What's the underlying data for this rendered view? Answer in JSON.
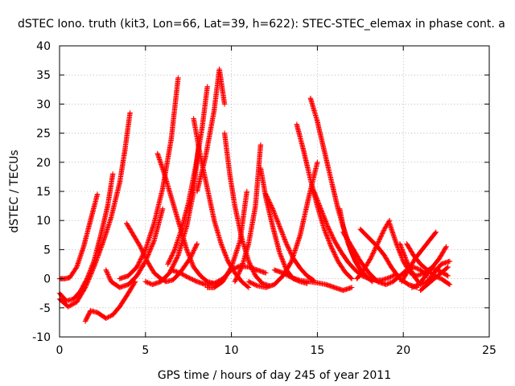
{
  "chart_data": {
    "type": "scatter",
    "title": "dSTEC Iono. truth (kit3, Lon=66, Lat=39, h=622): STEC-STEC_elemax in phase cont. a",
    "xlabel": "GPS time / hours of day 245 of year 2011",
    "ylabel": "dSTEC  / TECUs",
    "xlim": [
      0,
      25
    ],
    "ylim": [
      -10,
      40
    ],
    "xticks": [
      0,
      5,
      10,
      15,
      20,
      25
    ],
    "yticks": [
      -10,
      -5,
      0,
      5,
      10,
      15,
      20,
      25,
      30,
      35,
      40
    ],
    "grid": true,
    "marker": "+",
    "color": "#ff0000",
    "series": [
      {
        "x": [
          0,
          0.3,
          0.6,
          1.0,
          1.4,
          1.8,
          2.2
        ],
        "y": [
          0,
          0,
          0.2,
          2,
          5.5,
          10,
          14.5
        ]
      },
      {
        "x": [
          0,
          0.4,
          0.8,
          1.2,
          1.6,
          2.0,
          2.4,
          2.8,
          3.1
        ],
        "y": [
          -2.5,
          -3.8,
          -3.5,
          -2.2,
          0,
          3,
          7.5,
          12.5,
          18
        ]
      },
      {
        "x": [
          0,
          0.5,
          1.0,
          1.5,
          2.0,
          2.5,
          3.0,
          3.5,
          3.8,
          4.1
        ],
        "y": [
          -3.5,
          -4.8,
          -4.0,
          -1.5,
          2,
          6,
          10.5,
          16.5,
          22,
          28.5
        ]
      },
      {
        "x": [
          1.5,
          1.8,
          2.2,
          2.7,
          3.1,
          3.5,
          4.0,
          4.4
        ],
        "y": [
          -7.3,
          -5.5,
          -5.8,
          -6.8,
          -6.2,
          -4.8,
          -2.5,
          -0.5
        ]
      },
      {
        "x": [
          2.7,
          3.0,
          3.5,
          4.0,
          4.5,
          5.0,
          5.5,
          6.0
        ],
        "y": [
          1.5,
          -0.5,
          -1.5,
          -1.0,
          0.5,
          3,
          6.5,
          12
        ]
      },
      {
        "x": [
          3.5,
          4.0,
          4.5,
          5.0,
          5.5,
          6.0,
          6.5,
          6.9
        ],
        "y": [
          0,
          0.5,
          2,
          5,
          9.5,
          15.5,
          24,
          34.5
        ]
      },
      {
        "x": [
          3.9,
          4.3,
          4.7,
          5.1,
          5.5,
          5.9,
          6.2,
          6.6,
          7.0,
          7.6,
          8.0
        ],
        "y": [
          9.5,
          7.5,
          5.5,
          3,
          1,
          0,
          -0.5,
          -0.2,
          1,
          3.5,
          6
        ]
      },
      {
        "x": [
          5.0,
          5.4,
          5.9,
          6.4,
          6.9,
          7.4,
          7.8,
          8.1
        ],
        "y": [
          -0.5,
          -1,
          -0.5,
          1,
          4,
          9,
          15,
          23
        ]
      },
      {
        "x": [
          5.7,
          6.1,
          6.5,
          7.0,
          7.4,
          7.8,
          8.2,
          8.6,
          9.0
        ],
        "y": [
          21.5,
          18,
          14,
          9,
          5,
          2,
          0.5,
          -0.5,
          -0.8
        ]
      },
      {
        "x": [
          6.3,
          6.7,
          7.1,
          7.5,
          7.9,
          8.3,
          8.6
        ],
        "y": [
          2.5,
          5,
          8.5,
          13,
          19,
          26,
          33
        ]
      },
      {
        "x": [
          7.8,
          8.2,
          8.6,
          9.0,
          9.4,
          9.8,
          10.2,
          10.6,
          11.0
        ],
        "y": [
          27.5,
          21,
          15.5,
          10,
          6,
          3,
          1,
          -0.5,
          -1.5
        ]
      },
      {
        "x": [
          8.0,
          8.5,
          9.0,
          9.3,
          9.6
        ],
        "y": [
          15,
          21,
          29,
          36,
          30
        ]
      },
      {
        "x": [
          9.6,
          9.9,
          10.2,
          10.6,
          11.0,
          11.4,
          11.8,
          12.2
        ],
        "y": [
          25,
          18,
          12.5,
          7,
          3,
          0.5,
          -0.8,
          -1.2
        ]
      },
      {
        "x": [
          8.6,
          9.0,
          9.5,
          10.0,
          10.5,
          10.9
        ],
        "y": [
          -1.5,
          -1.5,
          -0.5,
          2,
          6.5,
          15
        ]
      },
      {
        "x": [
          6.5,
          7.0,
          7.5,
          8.0,
          8.5,
          9.0,
          9.5,
          10.0,
          10.5,
          11.0,
          11.5,
          12.0
        ],
        "y": [
          1.5,
          1.0,
          0.2,
          -0.5,
          -1.0,
          -0.8,
          0,
          1.5,
          2.2,
          2.0,
          1.5,
          1.0
        ]
      },
      {
        "x": [
          10.2,
          10.6,
          11.0,
          11.4,
          11.7
        ],
        "y": [
          -0.5,
          2,
          6,
          12.5,
          23
        ]
      },
      {
        "x": [
          11.7,
          12.0,
          12.4,
          12.8,
          13.2,
          13.6,
          14.0,
          14.4
        ],
        "y": [
          19,
          14,
          9,
          4.5,
          1.5,
          0,
          -0.5,
          -0.8
        ]
      },
      {
        "x": [
          12.0,
          12.4,
          12.8,
          13.2,
          13.6,
          14.0,
          14.4,
          14.8
        ],
        "y": [
          14.5,
          12,
          9,
          6,
          3.5,
          1.8,
          0.5,
          -0.3
        ]
      },
      {
        "x": [
          11.0,
          11.5,
          12.0,
          12.5,
          13.0,
          13.5,
          14.0,
          14.5,
          15.0
        ],
        "y": [
          -0.5,
          -1.2,
          -1.5,
          -1,
          0.5,
          3,
          7.5,
          14,
          20
        ]
      },
      {
        "x": [
          12.5,
          13.0,
          13.5,
          14.0,
          14.5,
          15.0,
          15.5,
          16.0,
          16.5,
          17.0
        ],
        "y": [
          1.5,
          1.0,
          0.2,
          -0.3,
          -0.5,
          -0.7,
          -1.0,
          -1.5,
          -2.0,
          -1.5
        ]
      },
      {
        "x": [
          14.6,
          15.0,
          15.4,
          15.8,
          16.2,
          16.6,
          17.0,
          17.4,
          17.8,
          18.2
        ],
        "y": [
          31,
          27,
          22,
          17,
          12,
          8,
          4.5,
          2,
          0.5,
          -0.5
        ]
      },
      {
        "x": [
          13.8,
          14.2,
          14.6,
          15.0,
          15.4,
          15.8,
          16.2,
          16.6,
          17.0
        ],
        "y": [
          26.5,
          22,
          17,
          12.5,
          8.5,
          5.5,
          3,
          1.2,
          0
        ]
      },
      {
        "x": [
          14.8,
          15.2,
          15.6,
          16.0,
          16.4,
          16.8,
          17.2,
          17.6,
          18.0,
          18.4,
          18.8,
          19.2,
          19.6
        ],
        "y": [
          15,
          12,
          9,
          6.5,
          4.5,
          2.8,
          1.5,
          0.5,
          0,
          -0.3,
          -0.2,
          0.2,
          0.8
        ]
      },
      {
        "x": [
          16.3,
          16.5,
          16.8,
          17.2,
          17.6,
          18.0
        ],
        "y": [
          12,
          9,
          6,
          3,
          1.2,
          0
        ]
      },
      {
        "x": [
          16.5,
          17.0,
          17.5,
          18.0,
          18.5,
          19.0,
          19.4,
          19.8,
          20.2,
          20.6,
          21.0,
          21.4
        ],
        "y": [
          8,
          5.5,
          3,
          1,
          -0.5,
          -1,
          -0.5,
          0.5,
          1.5,
          2.0,
          1.5,
          0.5
        ]
      },
      {
        "x": [
          17.3,
          17.7,
          18.1,
          18.5,
          18.9,
          19.2
        ],
        "y": [
          0,
          1.5,
          3.5,
          6,
          8.5,
          10
        ]
      },
      {
        "x": [
          17.5,
          18.0,
          18.5,
          18.9,
          19.3,
          19.8,
          20.3,
          20.8
        ],
        "y": [
          8.5,
          7,
          5.5,
          4,
          2,
          0,
          -1,
          -1.5
        ]
      },
      {
        "x": [
          19.2,
          19.6,
          20.0,
          20.4,
          20.8,
          21.2,
          21.6,
          22.0,
          22.6
        ],
        "y": [
          9.5,
          6,
          3,
          1,
          0.5,
          1,
          1.8,
          1.5,
          0.5
        ]
      },
      {
        "x": [
          19.8,
          20.2,
          20.6,
          21.0,
          21.4,
          21.8,
          22.2,
          22.7
        ],
        "y": [
          6,
          3,
          0.5,
          -1,
          -0.5,
          1,
          2.5,
          3
        ]
      },
      {
        "x": [
          20.5,
          20.9,
          21.3,
          21.7,
          22.1,
          22.5
        ],
        "y": [
          -1.5,
          -1,
          0.5,
          2,
          3.5,
          5.5
        ]
      },
      {
        "x": [
          20.2,
          20.6,
          21.0,
          21.4,
          21.8,
          22.2,
          22.7
        ],
        "y": [
          6,
          4,
          2.5,
          1.5,
          0.5,
          0,
          -1
        ]
      },
      {
        "x": [
          19.9,
          20.3,
          20.7,
          21.1,
          21.5,
          21.9
        ],
        "y": [
          -0.5,
          1.5,
          3.5,
          5,
          6.5,
          8
        ]
      },
      {
        "x": [
          21.0,
          21.4,
          21.8,
          22.2,
          22.6
        ],
        "y": [
          -2,
          -1,
          0,
          1,
          2
        ]
      }
    ]
  }
}
